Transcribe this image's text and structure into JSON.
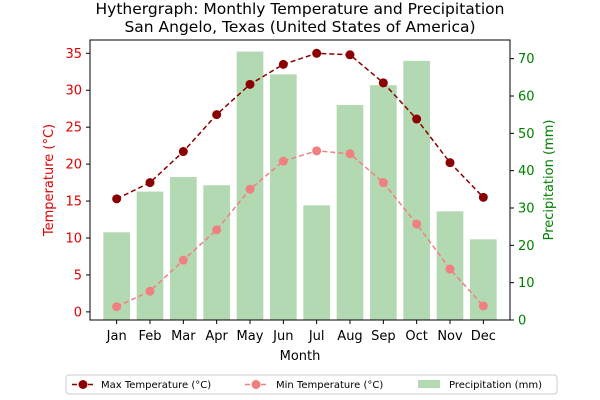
{
  "chart_data": {
    "type": "bar+line",
    "title": "Hythergraph: Monthly Temperature and Precipitation",
    "subtitle": "San Angelo, Texas (United States of America)",
    "xlabel": "Month",
    "ylabel_left": "Temperature (°C)",
    "ylabel_right": "Precipitation (mm)",
    "categories": [
      "Jan",
      "Feb",
      "Mar",
      "Apr",
      "May",
      "Jun",
      "Jul",
      "Aug",
      "Sep",
      "Oct",
      "Nov",
      "Dec"
    ],
    "ylim_left": [
      -1.1,
      36.8
    ],
    "yticks_left": [
      0,
      5,
      10,
      15,
      20,
      25,
      30,
      35
    ],
    "ylim_right": [
      0,
      75
    ],
    "yticks_right": [
      0,
      10,
      20,
      30,
      40,
      50,
      60,
      70
    ],
    "grid": false,
    "legend_position": "bottom",
    "series": [
      {
        "name": "Max Temperature (°C)",
        "type": "line",
        "axis": "left",
        "color": "#8b0000",
        "marker": "circle",
        "linestyle": "dashed",
        "values": [
          15.3,
          17.5,
          21.7,
          26.7,
          30.8,
          33.5,
          35.0,
          34.8,
          31.0,
          26.1,
          20.2,
          15.5
        ]
      },
      {
        "name": "Min Temperature (°C)",
        "type": "line",
        "axis": "left",
        "color": "#f08080",
        "marker": "circle",
        "linestyle": "dashed",
        "values": [
          0.7,
          2.8,
          7.0,
          11.1,
          16.6,
          20.4,
          21.8,
          21.4,
          17.5,
          11.9,
          5.8,
          0.8
        ]
      },
      {
        "name": "Precipitation (mm)",
        "type": "bar",
        "axis": "right",
        "color": "#b3d9b3",
        "values": [
          23.5,
          34.4,
          38.3,
          36.1,
          71.9,
          65.8,
          30.7,
          57.6,
          62.9,
          69.4,
          29.1,
          21.6
        ]
      }
    ]
  }
}
